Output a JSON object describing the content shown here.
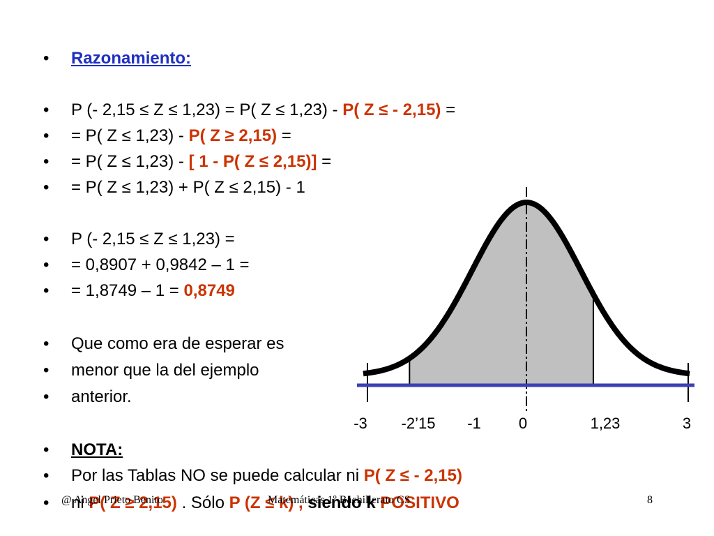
{
  "slide": {
    "heading": "Razonamiento:",
    "l1_a": "P (- 2,15 ≤ Z ≤ 1,23) = P( Z ≤ 1,23)  -  ",
    "l1_b": "P( Z ≤ - 2,15)",
    "l1_c": " =",
    "l2_a": "= P( Z ≤ 1,23)  -  ",
    "l2_b": "P( Z ≥ 2,15)",
    "l2_c": " =",
    "l3_a": "= P( Z ≤ 1,23)  -  ",
    "l3_b": "[ 1 - P( Z ≤  2,15)]",
    "l3_c": " =",
    "l4": "= P( Z ≤ 1,23) + P( Z ≤ 2,15)  -   1",
    "l5": "P (- 2,15 ≤ Z ≤ 1,23) =",
    "l6": "= 0,8907 + 0,9842 – 1 =",
    "l7_a": "= 1,8749 – 1 = ",
    "l7_b": "0,8749",
    "l8": "Que como era de esperar es",
    "l9": "menor que la del ejemplo",
    "l10": "anterior.",
    "nota": "NOTA:",
    "l11_a": "Por las Tablas NO se puede calcular  ni   ",
    "l11_b": "P( Z ≤ - 2,15)",
    "l12_a": "ni   ",
    "l12_b": "P( Z ≥ 2,15)",
    "l12_c": " .  Sólo   ",
    "l12_d": "P (Z ≤ k) ,",
    "l12_e": " siendo k  ",
    "l12_f": "POSITIVO",
    "bullet": "•"
  },
  "footer": {
    "author": "@ Angel Prieto Benito",
    "course": "Matemáticas 1º Bachillerato CS",
    "page": "8"
  },
  "chart_data": {
    "type": "area",
    "distribution": "standard normal",
    "x_ticks": [
      "-3",
      "-2’15",
      "-1",
      "0",
      "1,23",
      "3"
    ],
    "x_tick_values": [
      -3,
      -2.15,
      -1,
      0,
      1.23,
      3
    ],
    "shaded_from": -2.15,
    "shaded_to": 1.23,
    "colors": {
      "axis": "#3b3fb8",
      "shade": "#c0c0c0",
      "curve": "#000000"
    }
  }
}
